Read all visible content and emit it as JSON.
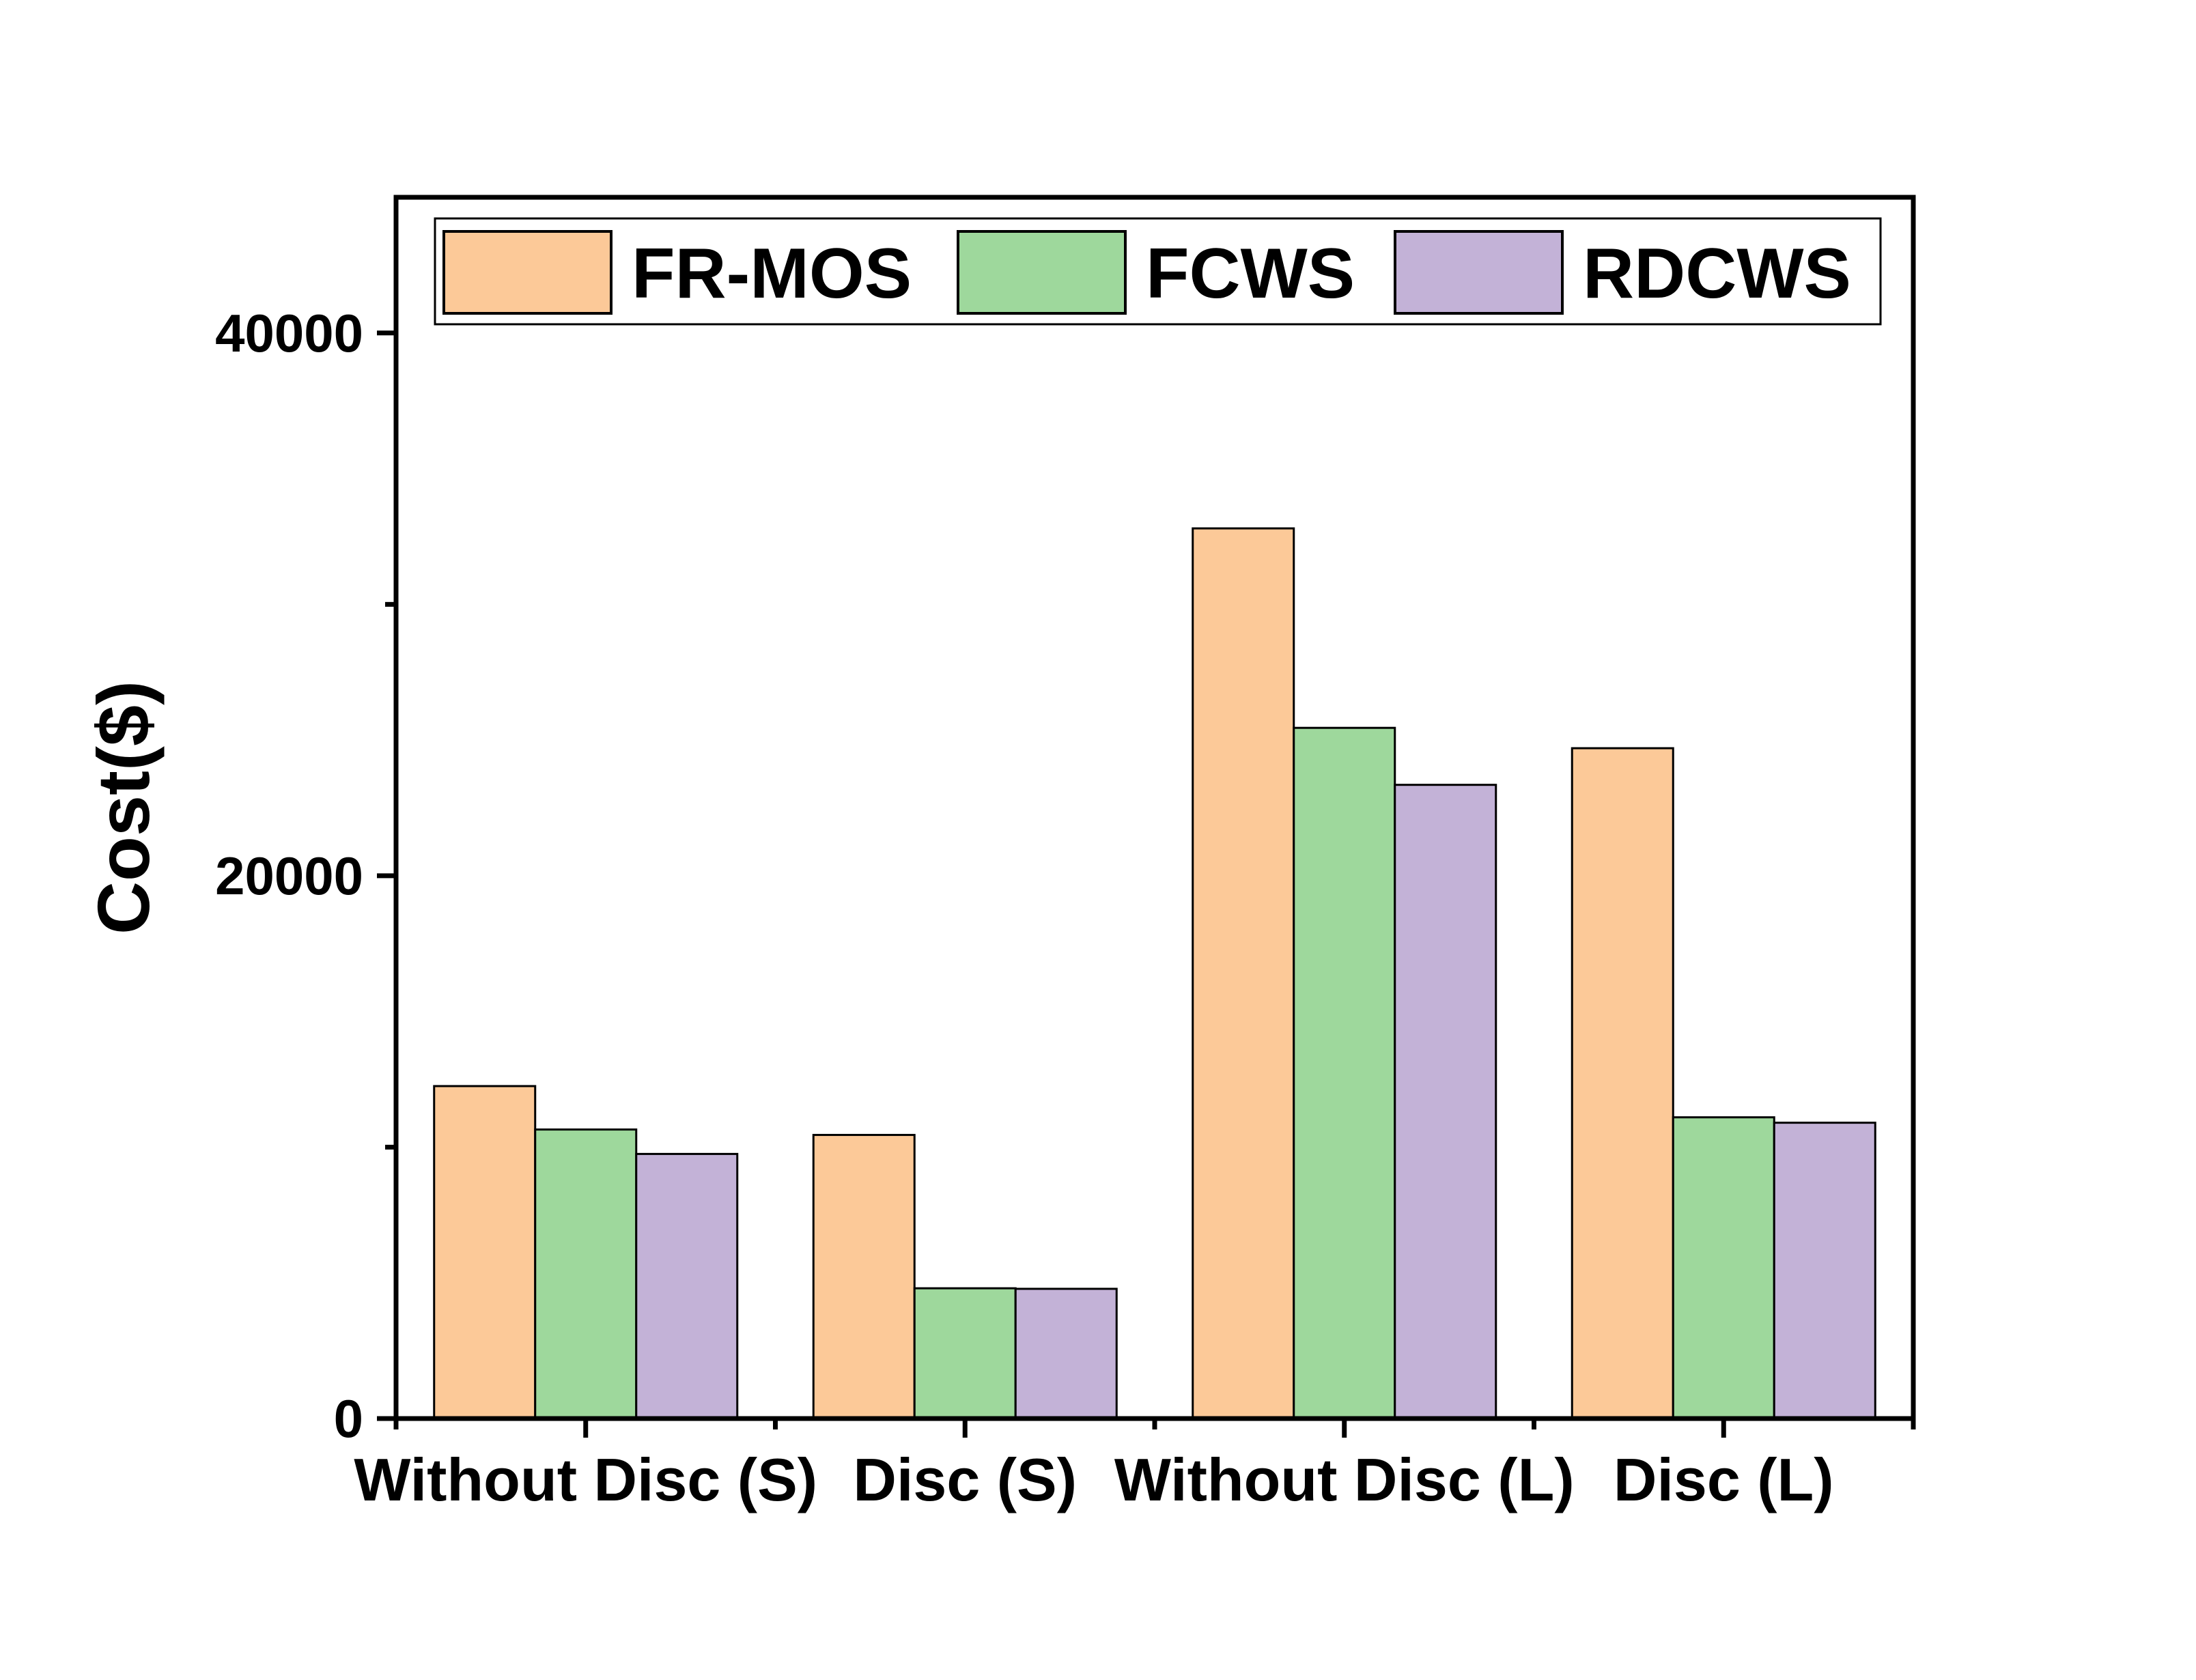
{
  "chart_data": {
    "type": "bar",
    "title": "",
    "xlabel": "",
    "ylabel": "Cost($)",
    "categories": [
      "Without Disc (S)",
      "Disc (S)",
      "Without Disc (L)",
      "Disc (L)"
    ],
    "series": [
      {
        "name": "FR-MOS",
        "color": "#FCC998",
        "values": [
          12250,
          10450,
          32800,
          24700
        ]
      },
      {
        "name": "FCWS",
        "color": "#9ED89C",
        "values": [
          10650,
          4800,
          25450,
          11100
        ]
      },
      {
        "name": "RDCWS",
        "color": "#C3B2D7",
        "values": [
          9750,
          4780,
          23350,
          10900
        ]
      }
    ],
    "ylim": [
      0,
      45000
    ],
    "yticks": [
      0,
      20000,
      40000
    ],
    "yticks_minor": [
      10000,
      30000
    ],
    "grid": false,
    "legend": "top"
  }
}
